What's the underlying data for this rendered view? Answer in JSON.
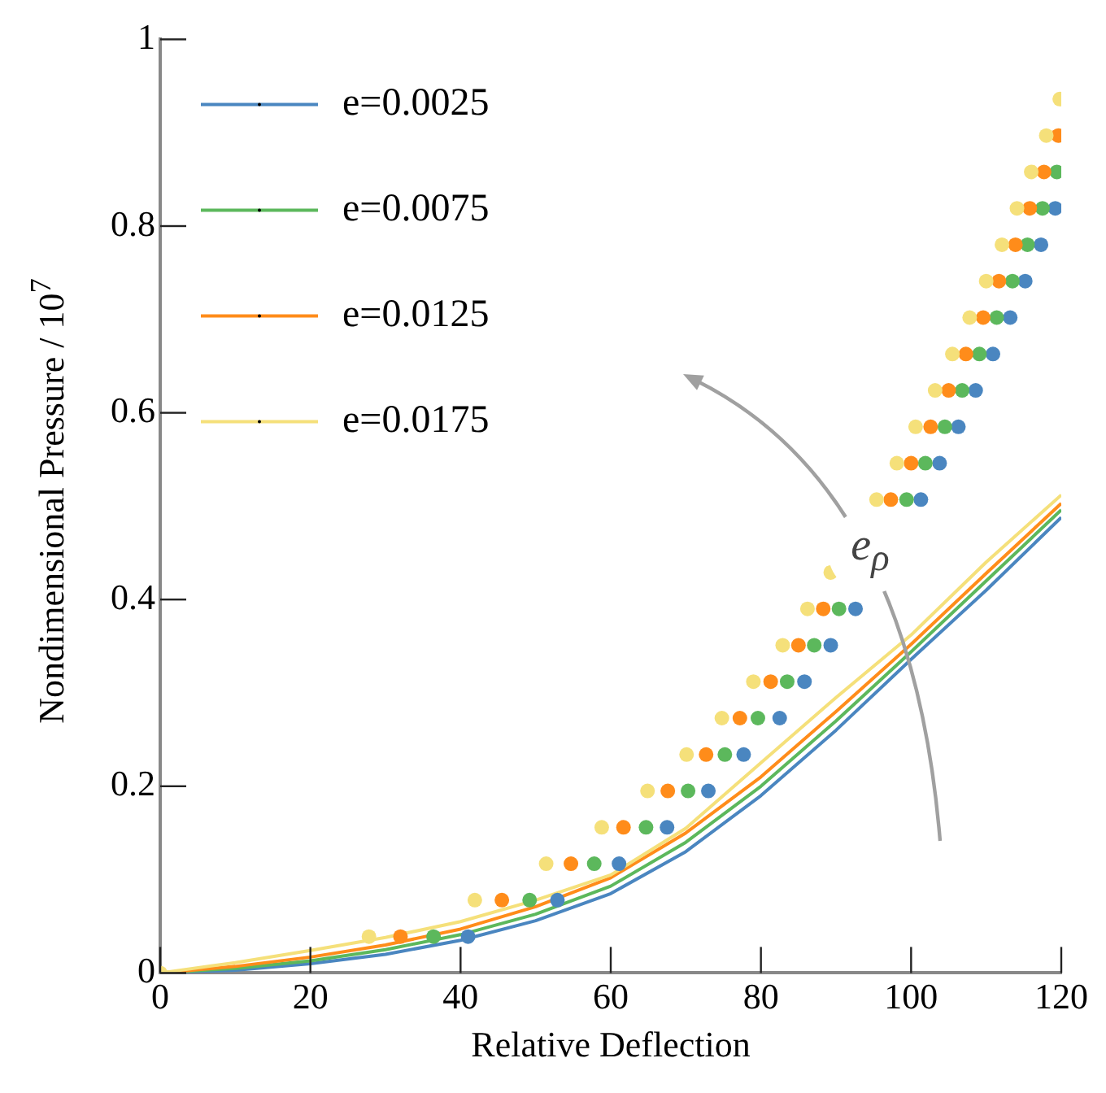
{
  "chart_data": {
    "type": "line",
    "xlabel": "Relative Deflection",
    "ylabel": "Nondimensional Pressure / 10$^{7}$",
    "xlim": [
      0,
      120
    ],
    "ylim": [
      0,
      1
    ],
    "xticks": [
      0,
      20,
      40,
      60,
      80,
      100,
      120
    ],
    "yticks": [
      0,
      0.2,
      0.4,
      0.6,
      0.8,
      1
    ],
    "grid": false,
    "legend": "top left",
    "annotations": [
      "e$_{ρ}$"
    ],
    "series": [
      {
        "name": "e=0.0025",
        "color": "#4a86c0",
        "x": [
          0,
          10,
          20,
          30,
          40,
          50,
          60,
          70,
          80,
          90,
          100,
          110,
          120
        ],
        "values": [
          0,
          0.003,
          0.01,
          0.02,
          0.035,
          0.056,
          0.085,
          0.13,
          0.19,
          0.26,
          0.336,
          0.41,
          0.488
        ]
      },
      {
        "name": "e=0.0075",
        "color": "#5cb85c",
        "x": [
          0,
          10,
          20,
          30,
          40,
          50,
          60,
          70,
          80,
          90,
          100,
          110,
          120
        ],
        "values": [
          0,
          0.005,
          0.013,
          0.025,
          0.041,
          0.063,
          0.093,
          0.14,
          0.2,
          0.27,
          0.344,
          0.42,
          0.496
        ]
      },
      {
        "name": "e=0.0125",
        "color": "#ff8c1a",
        "x": [
          0,
          10,
          20,
          30,
          40,
          50,
          60,
          70,
          80,
          90,
          100,
          110,
          120
        ],
        "values": [
          0,
          0.007,
          0.017,
          0.03,
          0.047,
          0.071,
          0.102,
          0.15,
          0.21,
          0.28,
          0.352,
          0.428,
          0.503
        ]
      },
      {
        "name": "e=0.0175",
        "color": "#f5e07a",
        "x": [
          0,
          10,
          20,
          30,
          40,
          50,
          60,
          70,
          80,
          90,
          100,
          110,
          120
        ],
        "values": [
          0,
          0.011,
          0.024,
          0.038,
          0.055,
          0.078,
          0.105,
          0.155,
          0.225,
          0.295,
          0.362,
          0.44,
          0.512
        ]
      },
      {
        "type": "scatter",
        "color": "#4a86c0",
        "x": [
          41.0,
          52.9,
          61.1,
          67.5,
          73.0,
          77.7,
          82.5,
          85.8,
          89.3,
          92.6,
          101.3,
          103.8,
          106.3,
          108.6,
          110.9,
          113.2,
          115.2,
          117.3,
          119.2
        ],
        "values": [
          0.039,
          0.078,
          0.117,
          0.156,
          0.195,
          0.234,
          0.273,
          0.312,
          0.351,
          0.39,
          0.507,
          0.546,
          0.585,
          0.624,
          0.663,
          0.702,
          0.741,
          0.78,
          0.819
        ]
      },
      {
        "type": "scatter",
        "color": "#5cb85c",
        "x": [
          36.4,
          49.2,
          57.8,
          64.7,
          70.3,
          75.2,
          79.6,
          83.5,
          87.1,
          90.4,
          99.4,
          101.9,
          104.5,
          106.8,
          109.1,
          111.4,
          113.5,
          115.5,
          117.5,
          119.4
        ],
        "values": [
          0.039,
          0.078,
          0.117,
          0.156,
          0.195,
          0.234,
          0.273,
          0.312,
          0.351,
          0.39,
          0.507,
          0.546,
          0.585,
          0.624,
          0.663,
          0.702,
          0.741,
          0.78,
          0.819,
          0.858
        ]
      },
      {
        "type": "scatter",
        "color": "#ff8c1a",
        "x": [
          32.0,
          45.5,
          54.7,
          61.7,
          67.6,
          72.7,
          77.2,
          81.3,
          85.0,
          88.3,
          97.3,
          100.0,
          102.6,
          105.0,
          107.3,
          109.6,
          111.7,
          113.9,
          115.8,
          117.7,
          119.6
        ],
        "values": [
          0.039,
          0.078,
          0.117,
          0.156,
          0.195,
          0.234,
          0.273,
          0.312,
          0.351,
          0.39,
          0.507,
          0.546,
          0.585,
          0.624,
          0.663,
          0.702,
          0.741,
          0.78,
          0.819,
          0.858,
          0.897
        ]
      },
      {
        "type": "scatter",
        "color": "#f5e07a",
        "x": [
          0,
          27.8,
          41.9,
          51.4,
          58.8,
          64.9,
          70.1,
          74.8,
          79.0,
          82.9,
          86.2,
          89.3,
          95.4,
          98.1,
          100.6,
          103.2,
          105.5,
          107.8,
          110.0,
          112.1,
          114.1,
          116.0,
          118.0,
          119.8
        ],
        "values": [
          0,
          0.039,
          0.078,
          0.117,
          0.156,
          0.195,
          0.234,
          0.273,
          0.312,
          0.351,
          0.39,
          0.429,
          0.507,
          0.546,
          0.585,
          0.624,
          0.663,
          0.702,
          0.741,
          0.78,
          0.819,
          0.858,
          0.897,
          0.936
        ]
      }
    ]
  }
}
